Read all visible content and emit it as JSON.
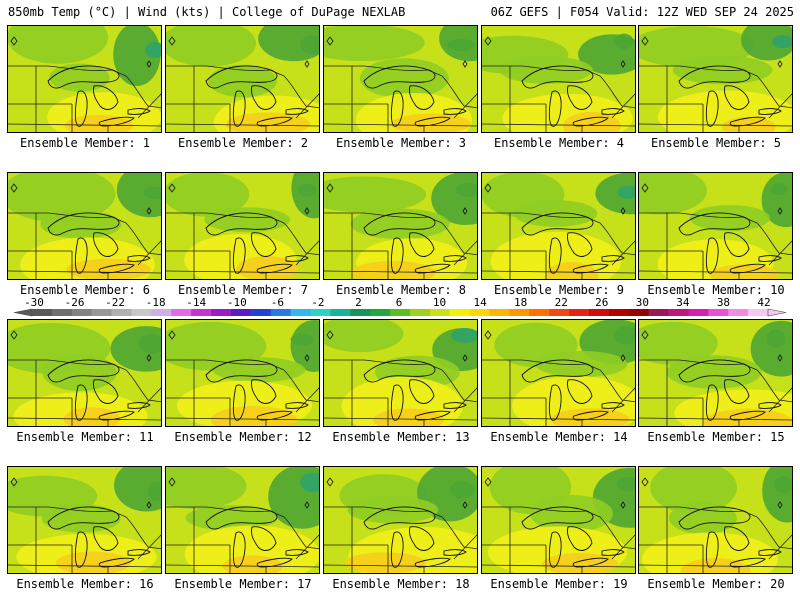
{
  "header": {
    "left": "850mb Temp (°C) | Wind (kts) | College of DuPage NEXLAB",
    "right": "06Z GEFS | F054 Valid: 12Z WED SEP 24 2025"
  },
  "members": [
    {
      "label": "Ensemble Member: 1"
    },
    {
      "label": "Ensemble Member: 2"
    },
    {
      "label": "Ensemble Member: 3"
    },
    {
      "label": "Ensemble Member: 4"
    },
    {
      "label": "Ensemble Member: 5"
    },
    {
      "label": "Ensemble Member: 6"
    },
    {
      "label": "Ensemble Member: 7"
    },
    {
      "label": "Ensemble Member: 8"
    },
    {
      "label": "Ensemble Member: 9"
    },
    {
      "label": "Ensemble Member: 10"
    },
    {
      "label": "Ensemble Member: 11"
    },
    {
      "label": "Ensemble Member: 12"
    },
    {
      "label": "Ensemble Member: 13"
    },
    {
      "label": "Ensemble Member: 14"
    },
    {
      "label": "Ensemble Member: 15"
    },
    {
      "label": "Ensemble Member: 16"
    },
    {
      "label": "Ensemble Member: 17"
    },
    {
      "label": "Ensemble Member: 18"
    },
    {
      "label": "Ensemble Member: 19"
    },
    {
      "label": "Ensemble Member: 20"
    }
  ],
  "legend": {
    "tick_labels": [
      "-30",
      "-26",
      "-22",
      "-18",
      "-14",
      "-10",
      "-6",
      "-2",
      "2",
      "6",
      "10",
      "14",
      "18",
      "22",
      "26",
      "30",
      "34",
      "38",
      "42"
    ],
    "colors": [
      "#5a5a5a",
      "#6f6f6f",
      "#838383",
      "#989898",
      "#b0b0b0",
      "#c8c8c8",
      "#d2aee8",
      "#e36ae8",
      "#c832d2",
      "#9a1cc8",
      "#5a1ec8",
      "#2840d2",
      "#2a78e6",
      "#30b8f0",
      "#2ed2c8",
      "#18b49a",
      "#14965a",
      "#20a83a",
      "#5abe1e",
      "#9ed21a",
      "#c8e21a",
      "#f2f200",
      "#ffd700",
      "#ffb400",
      "#ff9600",
      "#ff7000",
      "#f04a14",
      "#e62414",
      "#d20c0c",
      "#b40000",
      "#960000",
      "#a0145a",
      "#c0147e",
      "#d61eb4",
      "#ea50d6",
      "#f08ce2",
      "#f5c8f0"
    ]
  },
  "map_colors": {
    "base": "#c6e01a",
    "yellow": "#f2ef1a",
    "orange": "#f5cd1c",
    "green": "#8fcd24",
    "dark_green": "#4ea634",
    "teal": "#2fa36a"
  }
}
